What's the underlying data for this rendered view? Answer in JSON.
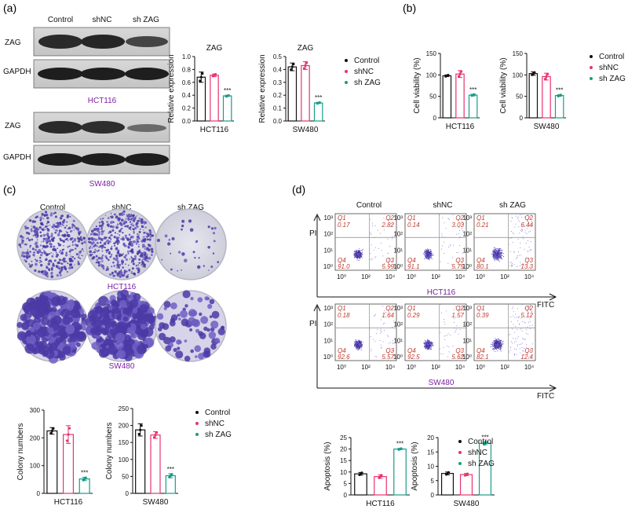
{
  "panels": {
    "a": {
      "label": "(a)",
      "col_headers": [
        "Control",
        "shNC",
        "sh ZAG"
      ],
      "row_labels": [
        "ZAG",
        "GAPDH",
        "ZAG",
        "GAPDH"
      ],
      "cell_lines": [
        "HCT116",
        "SW480"
      ]
    },
    "b": {
      "label": "(b)"
    },
    "c": {
      "label": "(c)",
      "col_headers": [
        "Control",
        "shNC",
        "sh ZAG"
      ],
      "cell_lines": [
        "HCT116",
        "SW480"
      ]
    },
    "d": {
      "label": "(d)",
      "col_headers": [
        "Control",
        "shNC",
        "sh ZAG"
      ],
      "y_axis": "PI",
      "x_axis": "FITC",
      "cell_lines": [
        "HCT116",
        "SW480"
      ],
      "quadrants": [
        [
          {
            "q1": "0.17",
            "q2": "2.82",
            "q3": "5.99",
            "q4": "91.0"
          },
          {
            "q1": "0.14",
            "q2": "3.03",
            "q3": "5.75",
            "q4": "91.1"
          },
          {
            "q1": "0.21",
            "q2": "6.44",
            "q3": "13.3",
            "q4": "80.1"
          }
        ],
        [
          {
            "q1": "0.18",
            "q2": "1.64",
            "q3": "5.57",
            "q4": "92.6"
          },
          {
            "q1": "0.29",
            "q2": "1.57",
            "q3": "5.62",
            "q4": "92.5"
          },
          {
            "q1": "0.39",
            "q2": "5.12",
            "q3": "12.4",
            "q4": "82.1"
          }
        ]
      ],
      "quadrant_names": [
        "Q1",
        "Q2",
        "Q3",
        "Q4"
      ],
      "tick_labels": [
        "10⁰",
        "10²",
        "10⁴"
      ],
      "y_tick_labels": [
        "10³",
        "10²",
        "10¹",
        "10⁰"
      ]
    }
  },
  "legend": {
    "entries": [
      "Control",
      "shNC",
      "sh ZAG"
    ],
    "colors": [
      "#111111",
      "#e8336f",
      "#1a9c8a"
    ]
  },
  "chart_data": [
    {
      "type": "bar",
      "title": "ZAG",
      "categories": [
        "HCT116"
      ],
      "xlabel": "HCT116",
      "ylabel": "Relative expression",
      "ylim": [
        0,
        1.0
      ],
      "yticks": [
        0.0,
        0.2,
        0.4,
        0.6,
        0.8,
        1.0
      ],
      "tick_labels": [
        "0.0",
        "0.2",
        "0.4",
        "0.6",
        "0.8",
        "1.0"
      ],
      "series": [
        {
          "name": "Control",
          "values": [
            0.68
          ]
        },
        {
          "name": "shNC",
          "values": [
            0.71
          ]
        },
        {
          "name": "sh ZAG",
          "values": [
            0.39
          ]
        }
      ],
      "errors": [
        0.08,
        0.02,
        0.01
      ],
      "annotation": "***"
    },
    {
      "type": "bar",
      "title": "ZAG",
      "categories": [
        "SW480"
      ],
      "xlabel": "SW480",
      "ylabel": "Relative expression",
      "ylim": [
        0,
        0.5
      ],
      "yticks": [
        0.0,
        0.1,
        0.2,
        0.3,
        0.4,
        0.5
      ],
      "tick_labels": [
        "0.0",
        "0.1",
        "0.2",
        "0.3",
        "0.4",
        "0.5"
      ],
      "series": [
        {
          "name": "Control",
          "values": [
            0.42
          ]
        },
        {
          "name": "shNC",
          "values": [
            0.43
          ]
        },
        {
          "name": "sh ZAG",
          "values": [
            0.14
          ]
        }
      ],
      "errors": [
        0.03,
        0.03,
        0.005
      ],
      "annotation": "***"
    },
    {
      "type": "bar",
      "title": "",
      "categories": [
        "HCT116"
      ],
      "xlabel": "HCT116",
      "ylabel": "Cell viability (%)",
      "ylim": [
        0,
        150
      ],
      "yticks": [
        0,
        50,
        100,
        150
      ],
      "tick_labels": [
        "0",
        "50",
        "100",
        "150"
      ],
      "series": [
        {
          "name": "Control",
          "values": [
            98
          ]
        },
        {
          "name": "shNC",
          "values": [
            102
          ]
        },
        {
          "name": "sh ZAG",
          "values": [
            53
          ]
        }
      ],
      "errors": [
        2,
        8,
        2
      ],
      "annotation": "***"
    },
    {
      "type": "bar",
      "title": "",
      "categories": [
        "SW480"
      ],
      "xlabel": "SW480",
      "ylabel": "Cell viability (%)",
      "ylim": [
        0,
        150
      ],
      "yticks": [
        0,
        50,
        100,
        150
      ],
      "tick_labels": [
        "0",
        "50",
        "100",
        "150"
      ],
      "series": [
        {
          "name": "Control",
          "values": [
            103
          ]
        },
        {
          "name": "shNC",
          "values": [
            96
          ]
        },
        {
          "name": "sh ZAG",
          "values": [
            52
          ]
        }
      ],
      "errors": [
        4,
        8,
        2
      ],
      "annotation": "***"
    },
    {
      "type": "bar",
      "title": "",
      "categories": [
        "HCT116"
      ],
      "xlabel": "HCT116",
      "ylabel": "Colony numbers",
      "ylim": [
        0,
        300
      ],
      "yticks": [
        0,
        100,
        200,
        300
      ],
      "tick_labels": [
        "0",
        "100",
        "200",
        "300"
      ],
      "series": [
        {
          "name": "Control",
          "values": [
            225
          ]
        },
        {
          "name": "shNC",
          "values": [
            212
          ]
        },
        {
          "name": "sh ZAG",
          "values": [
            52
          ]
        }
      ],
      "errors": [
        12,
        32,
        6
      ],
      "annotation": "***"
    },
    {
      "type": "bar",
      "title": "",
      "categories": [
        "SW480"
      ],
      "xlabel": "SW480",
      "ylabel": "Colony numbers",
      "ylim": [
        0,
        250
      ],
      "yticks": [
        0,
        50,
        100,
        150,
        200,
        250
      ],
      "tick_labels": [
        "0",
        "50",
        "100",
        "150",
        "200",
        "250"
      ],
      "series": [
        {
          "name": "Control",
          "values": [
            187
          ]
        },
        {
          "name": "shNC",
          "values": [
            172
          ]
        },
        {
          "name": "sh ZAG",
          "values": [
            52
          ]
        }
      ],
      "errors": [
        18,
        10,
        6
      ],
      "annotation": "***"
    },
    {
      "type": "bar",
      "title": "",
      "categories": [
        "HCT116"
      ],
      "xlabel": "HCT116",
      "ylabel": "Apoptosis (%)",
      "ylim": [
        0,
        25
      ],
      "yticks": [
        0,
        5,
        10,
        15,
        20,
        25
      ],
      "tick_labels": [
        "0",
        "5",
        "10",
        "15",
        "20",
        "25"
      ],
      "series": [
        {
          "name": "Control",
          "values": [
            9.2
          ]
        },
        {
          "name": "shNC",
          "values": [
            8.0
          ]
        },
        {
          "name": "sh ZAG",
          "values": [
            20.0
          ]
        }
      ],
      "errors": [
        0.6,
        0.8,
        0.3
      ],
      "annotation": "***"
    },
    {
      "type": "bar",
      "title": "",
      "categories": [
        "SW480"
      ],
      "xlabel": "SW480",
      "ylabel": "Apoptosis (%)",
      "ylim": [
        0,
        20
      ],
      "yticks": [
        0,
        5,
        10,
        15,
        20
      ],
      "tick_labels": [
        "0",
        "5",
        "10",
        "15",
        "20"
      ],
      "series": [
        {
          "name": "Control",
          "values": [
            7.5
          ]
        },
        {
          "name": "shNC",
          "values": [
            7.1
          ]
        },
        {
          "name": "sh ZAG",
          "values": [
            18.0
          ]
        }
      ],
      "errors": [
        0.5,
        0.4,
        0.5
      ],
      "annotation": "***"
    }
  ]
}
